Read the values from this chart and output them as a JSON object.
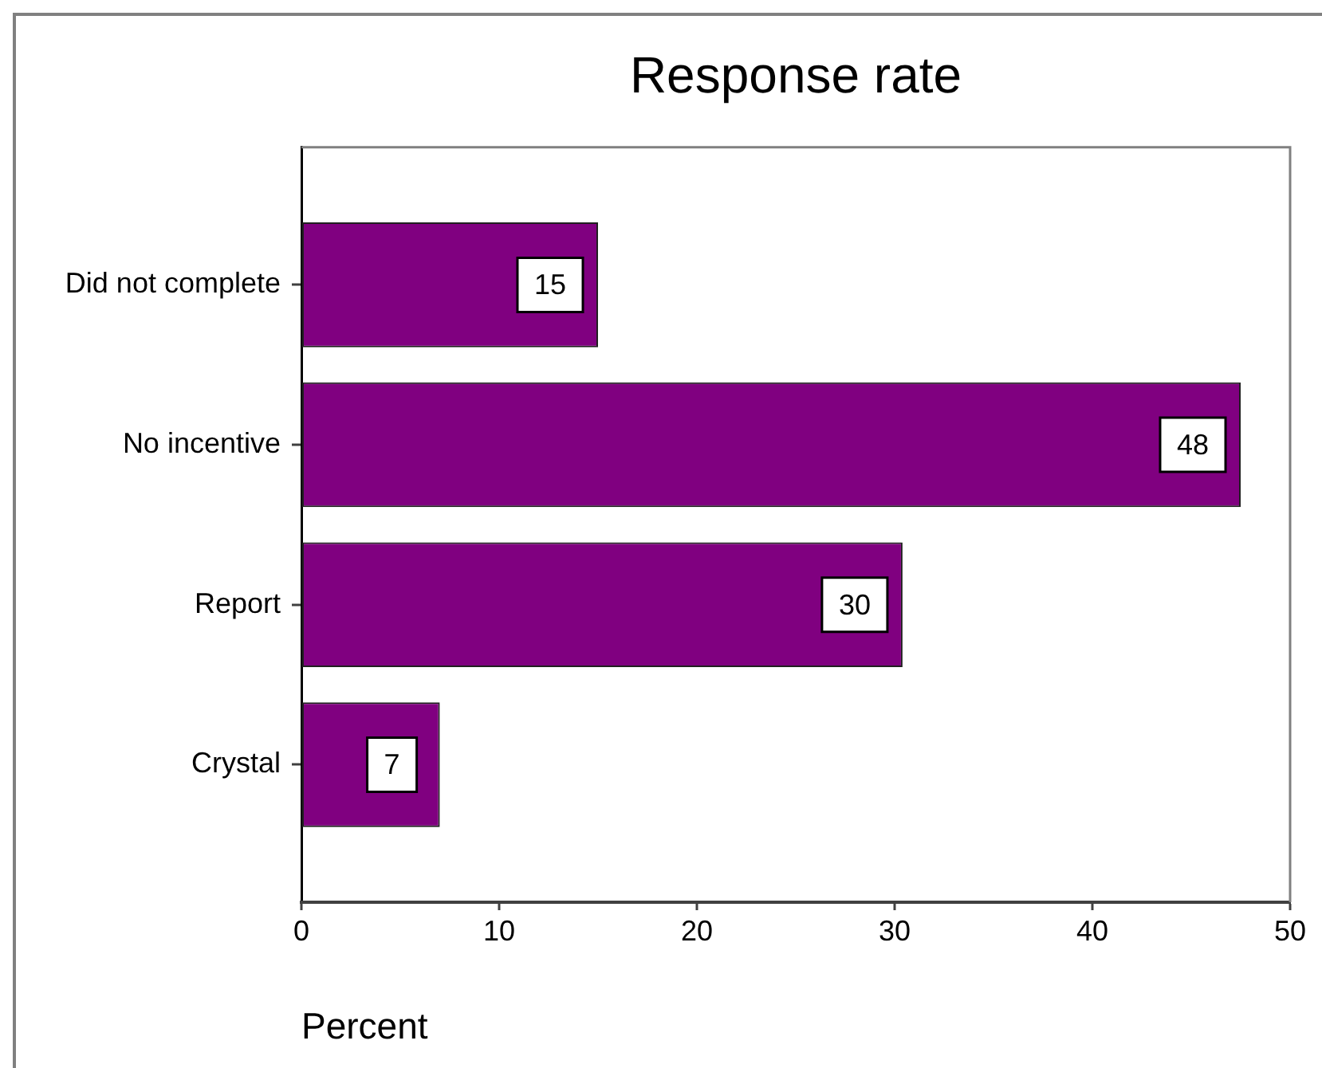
{
  "chart_data": {
    "type": "bar",
    "orientation": "horizontal",
    "title": "Response rate",
    "xlabel": "Percent",
    "categories": [
      "Did not complete",
      "No incentive",
      "Report",
      "Crystal"
    ],
    "values": [
      15,
      47.5,
      30.4,
      7
    ],
    "value_labels": [
      "15",
      "48",
      "30",
      "7"
    ],
    "color": "#800080",
    "xlim": [
      0,
      50
    ],
    "xticks": [
      0,
      10,
      20,
      30,
      40,
      50
    ]
  }
}
